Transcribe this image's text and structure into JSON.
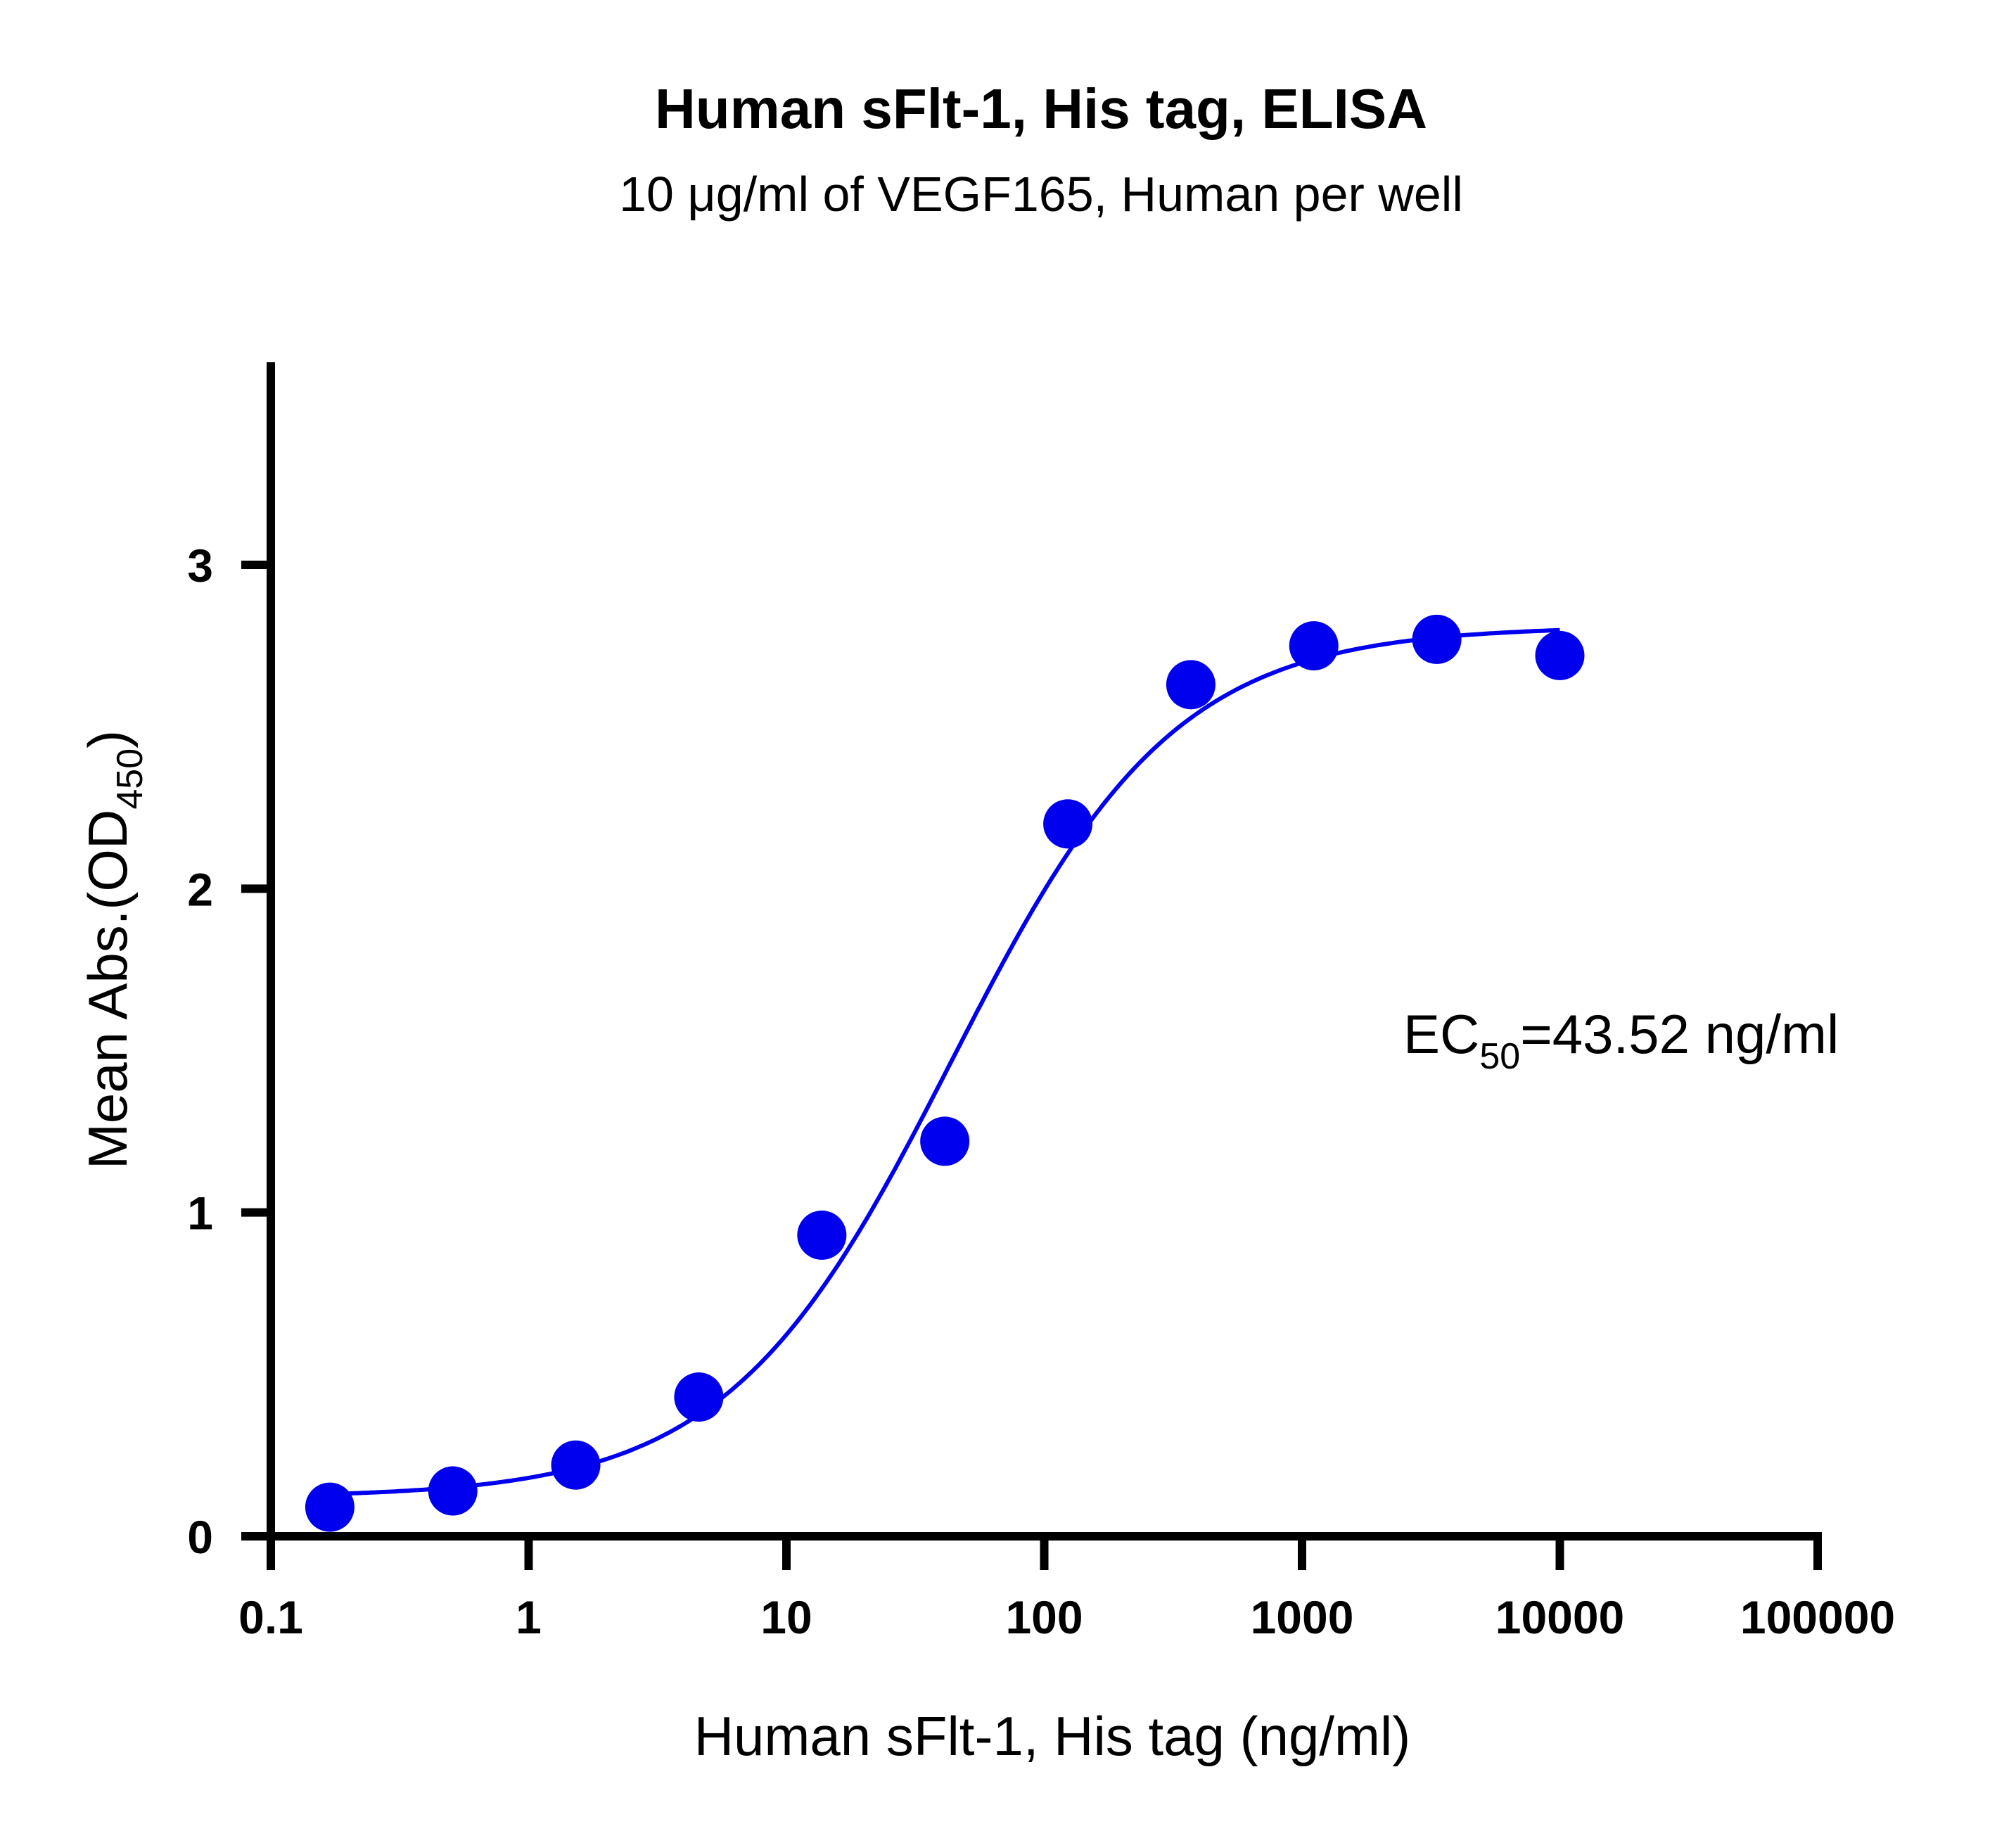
{
  "chart_data": {
    "type": "scatter",
    "title": "Human sFlt-1, His tag, ELISA",
    "subtitle": "10 μg/ml of VEGF165, Human per well",
    "xlabel": "Human sFlt-1, His tag (ng/ml)",
    "ylabel_main": "Mean Abs.(OD",
    "ylabel_sub": "450",
    "ylabel_close": ")",
    "x_scale": "log10",
    "xlim": [
      0.1,
      100000
    ],
    "ylim": [
      0,
      3.6
    ],
    "x_ticks": [
      {
        "value": 0.1,
        "label": "0.1"
      },
      {
        "value": 1,
        "label": "1"
      },
      {
        "value": 10,
        "label": "10"
      },
      {
        "value": 100,
        "label": "100"
      },
      {
        "value": 1000,
        "label": "1000"
      },
      {
        "value": 10000,
        "label": "10000"
      },
      {
        "value": 100000,
        "label": "100000"
      }
    ],
    "y_ticks": [
      {
        "value": 0,
        "label": "0"
      },
      {
        "value": 1,
        "label": "1"
      },
      {
        "value": 2,
        "label": "2"
      },
      {
        "value": 3,
        "label": "3"
      }
    ],
    "grid": false,
    "series": [
      {
        "color": "#0000ee",
        "x": [
          0.1694,
          0.5081,
          1.524,
          4.572,
          13.72,
          41.15,
          123.5,
          370.4,
          1111,
          3333,
          10000
        ],
        "y": [
          0.09,
          0.14,
          0.22,
          0.43,
          0.93,
          1.22,
          2.2,
          2.63,
          2.75,
          2.77,
          2.72
        ],
        "fit": {
          "model": "4PL",
          "bottom": 0.12,
          "top": 2.81,
          "ec50": 43.52,
          "hill": 1.0,
          "x_range": [
            0.1694,
            10000
          ]
        }
      }
    ],
    "annotation": {
      "main": "EC",
      "sub": "50",
      "rest": "=43.52 ng/ml"
    }
  }
}
